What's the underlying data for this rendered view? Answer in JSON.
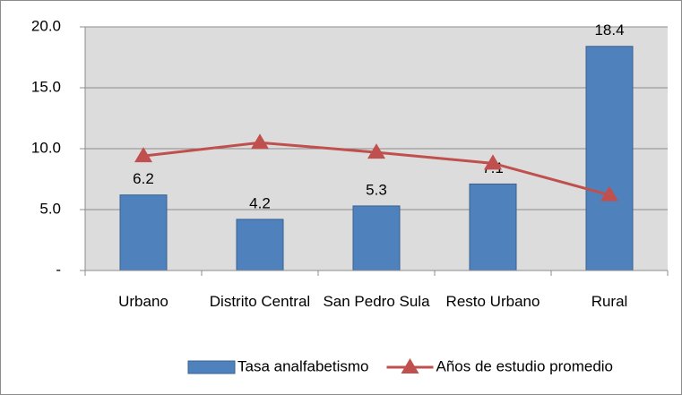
{
  "chart_data": {
    "type": "bar",
    "categories": [
      "Urbano",
      "Distrito Central",
      "San Pedro Sula",
      "Resto Urbano",
      "Rural"
    ],
    "series": [
      {
        "name": "Tasa analfabetismo",
        "type": "bar",
        "color": "#4f81bd",
        "values": [
          6.2,
          4.2,
          5.3,
          7.1,
          18.4
        ]
      },
      {
        "name": "Años de estudio promedio",
        "type": "line",
        "color": "#c0504d",
        "values": [
          9.4,
          10.5,
          9.7,
          8.8,
          6.2
        ]
      }
    ],
    "ylim": [
      0,
      20
    ],
    "yticks": [
      {
        "value": 0,
        "label": "-"
      },
      {
        "value": 5,
        "label": "5.0"
      },
      {
        "value": 10,
        "label": "10.0"
      },
      {
        "value": 15,
        "label": "15.0"
      },
      {
        "value": 20,
        "label": "20.0"
      }
    ],
    "grid": true,
    "legend": "bottom"
  }
}
